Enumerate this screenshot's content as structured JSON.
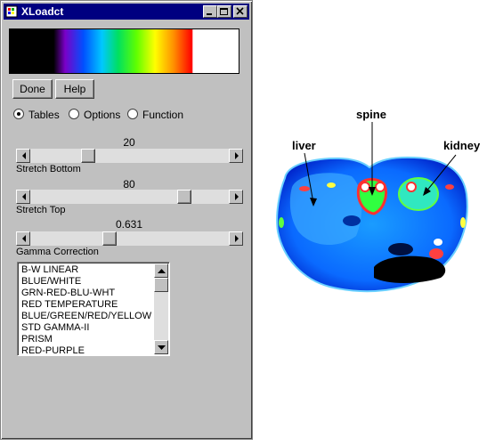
{
  "window": {
    "title": "XLoadct",
    "app_icon": "xloadct-app-icon"
  },
  "buttons": {
    "done": "Done",
    "help": "Help"
  },
  "modes": [
    {
      "label": "Tables",
      "selected": true
    },
    {
      "label": "Options",
      "selected": false
    },
    {
      "label": "Function",
      "selected": false
    }
  ],
  "sliders": {
    "stretch_bottom": {
      "value": "20",
      "label": "Stretch Bottom",
      "fraction": 0.2
    },
    "stretch_top": {
      "value": "80",
      "label": "Stretch Top",
      "fraction": 0.8
    },
    "gamma": {
      "value": "0.631",
      "label": "Gamma Correction",
      "fraction": 0.42
    }
  },
  "color_tables": [
    "B-W LINEAR",
    "BLUE/WHITE",
    "GRN-RED-BLU-WHT",
    "RED TEMPERATURE",
    "BLUE/GREEN/RED/YELLOW",
    "STD GAMMA-II",
    "PRISM",
    "RED-PURPLE"
  ],
  "annotations": {
    "liver": "liver",
    "spine": "spine",
    "kidney": "kidney"
  }
}
